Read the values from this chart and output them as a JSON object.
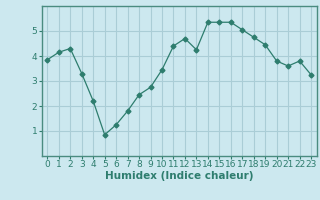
{
  "x": [
    0,
    1,
    2,
    3,
    4,
    5,
    6,
    7,
    8,
    9,
    10,
    11,
    12,
    13,
    14,
    15,
    16,
    17,
    18,
    19,
    20,
    21,
    22,
    23
  ],
  "y": [
    3.85,
    4.15,
    4.3,
    3.3,
    2.2,
    0.85,
    1.25,
    1.8,
    2.45,
    2.75,
    3.45,
    4.4,
    4.7,
    4.25,
    5.35,
    5.35,
    5.35,
    5.05,
    4.75,
    4.45,
    3.8,
    3.6,
    3.8,
    3.25
  ],
  "line_color": "#2e7d6e",
  "marker": "D",
  "marker_size": 2.5,
  "bg_color": "#cce8ef",
  "grid_color": "#aacdd6",
  "xlabel": "Humidex (Indice chaleur)",
  "ylim": [
    0,
    6
  ],
  "xlim": [
    -0.5,
    23.5
  ],
  "yticks": [
    1,
    2,
    3,
    4,
    5
  ],
  "xticks": [
    0,
    1,
    2,
    3,
    4,
    5,
    6,
    7,
    8,
    9,
    10,
    11,
    12,
    13,
    14,
    15,
    16,
    17,
    18,
    19,
    20,
    21,
    22,
    23
  ],
  "xlabel_fontsize": 7.5,
  "tick_fontsize": 6.5,
  "spine_color": "#4a8c80"
}
